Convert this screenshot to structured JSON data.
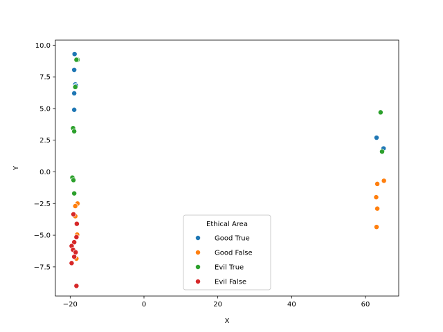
{
  "chart_data": {
    "type": "scatter",
    "xlabel": "X",
    "ylabel": "Y",
    "xlim": [
      -24,
      69
    ],
    "ylim": [
      -9.8,
      10.4
    ],
    "xticks": [
      -20,
      0,
      20,
      40,
      60
    ],
    "yticks": [
      -7.5,
      -5.0,
      -2.5,
      0.0,
      2.5,
      5.0,
      7.5,
      10.0
    ],
    "grid": false,
    "legend": {
      "title": "Ethical Area",
      "placement": "lower-center"
    },
    "series": [
      {
        "name": "Good True",
        "color": "#1f77b4",
        "points": [
          {
            "x": -18.8,
            "y": 9.3
          },
          {
            "x": -18.9,
            "y": 8.05
          },
          {
            "x": -18.6,
            "y": 6.9
          },
          {
            "x": -18.4,
            "y": 6.8
          },
          {
            "x": -18.9,
            "y": 6.2
          },
          {
            "x": -18.9,
            "y": 4.9
          },
          {
            "x": 63.0,
            "y": 2.7
          },
          {
            "x": 64.9,
            "y": 1.85
          }
        ]
      },
      {
        "name": "Good False",
        "color": "#ff7f0e",
        "points": [
          {
            "x": -18.0,
            "y": -2.5
          },
          {
            "x": -18.6,
            "y": -2.7
          },
          {
            "x": -18.6,
            "y": -3.5
          },
          {
            "x": -18.1,
            "y": -4.95
          },
          {
            "x": -18.3,
            "y": -6.85
          },
          {
            "x": 63.2,
            "y": -0.95
          },
          {
            "x": 65.0,
            "y": -0.7
          },
          {
            "x": 62.9,
            "y": -2.0
          },
          {
            "x": 63.2,
            "y": -2.9
          },
          {
            "x": 63.0,
            "y": -4.35
          }
        ]
      },
      {
        "name": "Evil True",
        "color": "#2ca02c",
        "points": [
          {
            "x": -18.0,
            "y": 8.85
          },
          {
            "x": -18.3,
            "y": 8.85
          },
          {
            "x": -18.6,
            "y": 6.7
          },
          {
            "x": -19.2,
            "y": 3.45
          },
          {
            "x": -18.9,
            "y": 3.2
          },
          {
            "x": -19.4,
            "y": -0.45
          },
          {
            "x": -19.1,
            "y": -0.65
          },
          {
            "x": -18.9,
            "y": -1.7
          },
          {
            "x": 64.1,
            "y": 4.7
          },
          {
            "x": 64.5,
            "y": 1.6
          }
        ]
      },
      {
        "name": "Evil False",
        "color": "#d62728",
        "points": [
          {
            "x": -19.1,
            "y": -3.35
          },
          {
            "x": -18.2,
            "y": -4.1
          },
          {
            "x": -18.3,
            "y": -5.15
          },
          {
            "x": -18.9,
            "y": -5.55
          },
          {
            "x": -19.6,
            "y": -5.85
          },
          {
            "x": -19.2,
            "y": -6.15
          },
          {
            "x": -18.5,
            "y": -6.35
          },
          {
            "x": -18.9,
            "y": -6.7
          },
          {
            "x": -19.6,
            "y": -7.2
          },
          {
            "x": -18.3,
            "y": -9.0
          }
        ]
      }
    ]
  }
}
